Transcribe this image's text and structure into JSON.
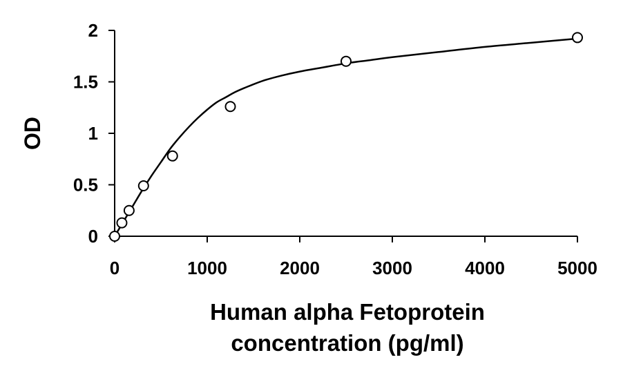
{
  "chart_data": {
    "type": "scatter",
    "title": "",
    "xlabel_lines": [
      "Human alpha Fetoprotein",
      "concentration (pg/ml)"
    ],
    "ylabel": "OD",
    "xlim": [
      0,
      5000
    ],
    "ylim": [
      0,
      2
    ],
    "x_ticks": [
      0,
      1000,
      2000,
      3000,
      4000,
      5000
    ],
    "y_ticks": [
      0,
      0.5,
      1,
      1.5,
      2
    ],
    "y_tick_labels": [
      "0",
      "0.5",
      "1",
      "1.5",
      "2"
    ],
    "grid": false,
    "legend": "none",
    "series": [
      {
        "marker": "open-circle",
        "x": [
          0,
          78,
          156,
          312,
          625,
          1250,
          2500,
          5000
        ],
        "y": [
          0.0,
          0.13,
          0.25,
          0.49,
          0.78,
          1.26,
          1.7,
          1.93
        ]
      }
    ],
    "fit_curve": {
      "type": "smooth",
      "x": [
        0,
        100,
        200,
        300,
        400,
        500,
        600,
        700,
        800,
        900,
        1000,
        1100,
        1200,
        1300,
        1400,
        1600,
        1800,
        2000,
        2250,
        2500,
        2750,
        3000,
        3500,
        4000,
        4500,
        5000
      ],
      "y": [
        0.0,
        0.15,
        0.3,
        0.45,
        0.59,
        0.72,
        0.85,
        0.96,
        1.06,
        1.15,
        1.23,
        1.3,
        1.35,
        1.4,
        1.44,
        1.51,
        1.56,
        1.6,
        1.64,
        1.68,
        1.71,
        1.74,
        1.79,
        1.84,
        1.88,
        1.92
      ]
    },
    "colors": {
      "marks": "#000000",
      "background": "#ffffff"
    }
  }
}
